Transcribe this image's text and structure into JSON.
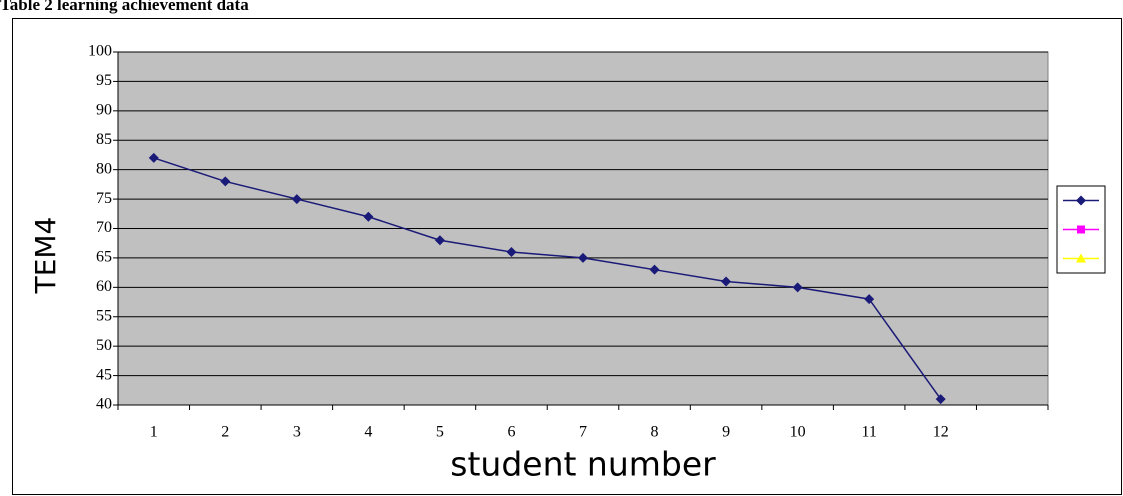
{
  "chart_data": {
    "type": "line",
    "title": "Table 2 learning achievement data",
    "xlabel": "student number",
    "ylabel": "TEM4",
    "categories": [
      "1",
      "2",
      "3",
      "4",
      "5",
      "6",
      "7",
      "8",
      "9",
      "10",
      "11",
      "12",
      null
    ],
    "series": [
      {
        "color": "#1a1a78",
        "marker": "diamond",
        "values": [
          82,
          78,
          75,
          72,
          68,
          66,
          65,
          63,
          61,
          60,
          58,
          41,
          null
        ]
      },
      {
        "color": "#ff00ff",
        "marker": "square",
        "values": [
          null,
          null,
          null,
          null,
          null,
          null,
          null,
          null,
          null,
          null,
          null,
          null,
          null
        ]
      },
      {
        "color": "#ffff00",
        "marker": "triangle",
        "values": [
          null,
          null,
          null,
          null,
          null,
          null,
          null,
          null,
          null,
          null,
          null,
          null,
          null
        ]
      }
    ],
    "ylim": [
      40,
      100
    ],
    "yticks": [
      40,
      45,
      50,
      55,
      60,
      65,
      70,
      75,
      80,
      85,
      90,
      95,
      100
    ],
    "grid": true,
    "legend": "right"
  }
}
